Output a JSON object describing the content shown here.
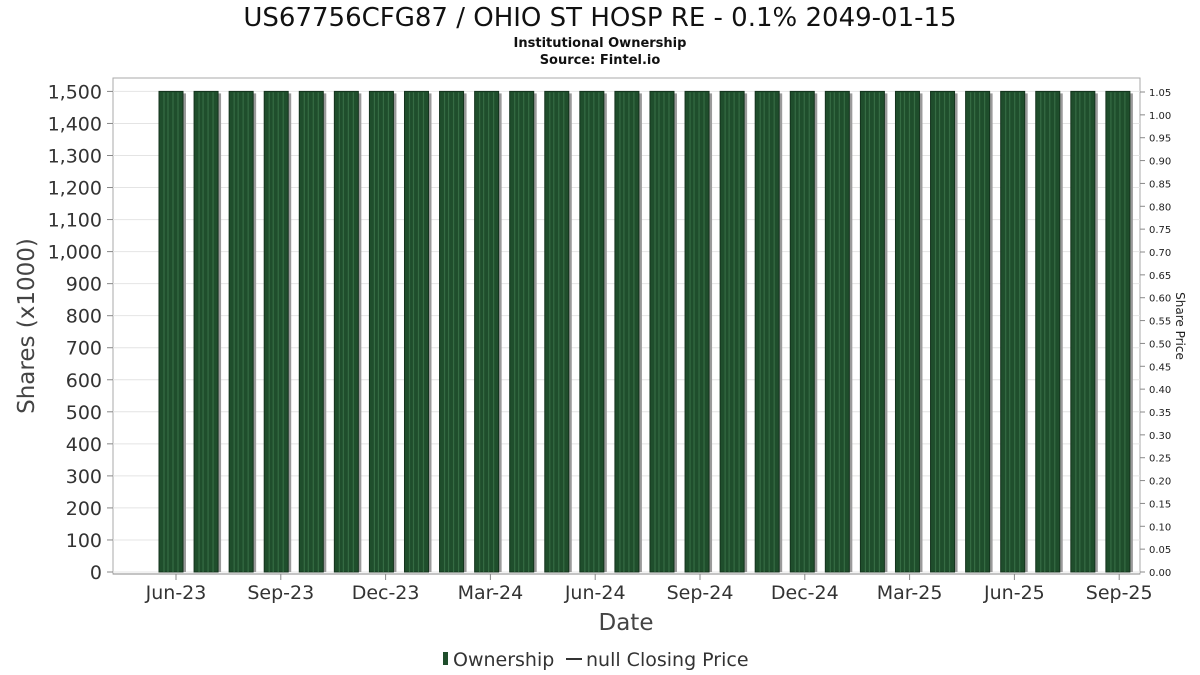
{
  "chart_data": {
    "type": "bar",
    "title": "US67756CFG87 / OHIO ST HOSP RE - 0.1% 2049-01-15",
    "subtitle_lines": [
      "Institutional Ownership",
      "Source: Fintel.io"
    ],
    "xlabel": "Date",
    "ylabel": "Shares (x1000)",
    "ylabel_right": "Share Price",
    "x_tick_labels": [
      "Jun-23",
      "Sep-23",
      "Dec-23",
      "Mar-24",
      "Jun-24",
      "Sep-24",
      "Dec-24",
      "Mar-25",
      "Jun-25",
      "Sep-25"
    ],
    "y_ticks": [
      0,
      100,
      200,
      300,
      400,
      500,
      600,
      700,
      800,
      900,
      1000,
      1100,
      1200,
      1300,
      1400,
      1500
    ],
    "y_tick_labels": [
      "0",
      "100",
      "200",
      "300",
      "400",
      "500",
      "600",
      "700",
      "800",
      "900",
      "1,000",
      "1,100",
      "1,200",
      "1,300",
      "1,400",
      "1,500"
    ],
    "ylim": [
      0,
      1520
    ],
    "y2_tick_labels": [
      "0.00",
      "0.05",
      "0.10",
      "0.15",
      "0.20",
      "0.25",
      "0.30",
      "0.35",
      "0.40",
      "0.45",
      "0.50",
      "0.55",
      "0.60",
      "0.65",
      "0.70",
      "0.75",
      "0.80",
      "0.85",
      "0.90",
      "0.95",
      "1.00",
      "1.05"
    ],
    "y2lim": [
      0,
      1.05
    ],
    "grid": true,
    "series": [
      {
        "name": "Ownership",
        "color": "#1f4e2c",
        "values": [
          1500,
          1500,
          1500,
          1500,
          1500,
          1500,
          1500,
          1500,
          1500,
          1500,
          1500,
          1500,
          1500,
          1500,
          1500,
          1500,
          1500,
          1500,
          1500,
          1500,
          1500,
          1500,
          1500,
          1500,
          1500,
          1500,
          1500,
          1500
        ]
      }
    ],
    "legend": {
      "placement": "bottom",
      "items": [
        {
          "label": "Ownership",
          "symbol": "bar",
          "color": "#1f4e2c"
        },
        {
          "label": "null Closing Price",
          "symbol": "line",
          "color": "#333333"
        }
      ]
    }
  }
}
